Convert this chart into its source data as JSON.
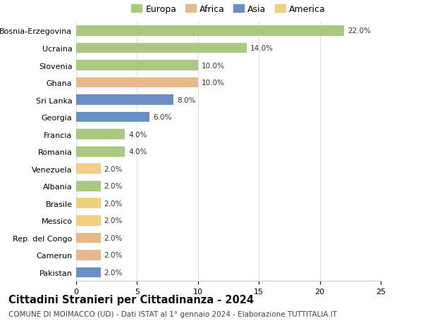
{
  "countries": [
    "Bosnia-Erzegovina",
    "Ucraina",
    "Slovenia",
    "Ghana",
    "Sri Lanka",
    "Georgia",
    "Francia",
    "Romania",
    "Venezuela",
    "Albania",
    "Brasile",
    "Messico",
    "Rep. del Congo",
    "Camerun",
    "Pakistan"
  ],
  "values": [
    22.0,
    14.0,
    10.0,
    10.0,
    8.0,
    6.0,
    4.0,
    4.0,
    2.0,
    2.0,
    2.0,
    2.0,
    2.0,
    2.0,
    2.0
  ],
  "continents": [
    "Europa",
    "Europa",
    "Europa",
    "Africa",
    "Asia",
    "Asia",
    "Europa",
    "Europa",
    "America",
    "Europa",
    "America",
    "America",
    "Africa",
    "Africa",
    "Asia"
  ],
  "continent_colors": {
    "Europa": "#a8c97f",
    "Africa": "#e8b88a",
    "Asia": "#6b8fc4",
    "America": "#f0d080"
  },
  "legend_order": [
    "Europa",
    "Africa",
    "Asia",
    "America"
  ],
  "xlim": [
    0,
    25
  ],
  "xticks": [
    0,
    5,
    10,
    15,
    20,
    25
  ],
  "title": "Cittadini Stranieri per Cittadinanza - 2024",
  "subtitle": "COMUNE DI MOIMACCO (UD) - Dati ISTAT al 1° gennaio 2024 - Elaborazione TUTTITALIA.IT",
  "title_fontsize": 10.5,
  "subtitle_fontsize": 7.5,
  "background_color": "#ffffff",
  "grid_color": "#e0e0e0",
  "bar_height": 0.6
}
